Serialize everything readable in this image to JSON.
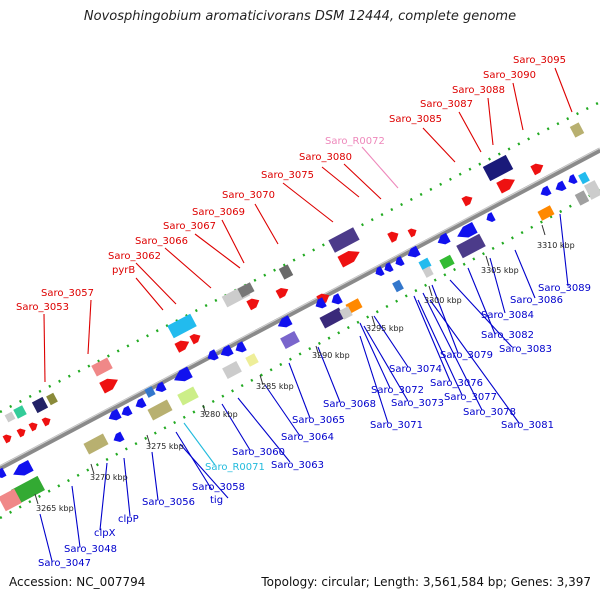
{
  "title": "Novosphingobium aromaticivorans DSM 12444, complete genome",
  "accession": "Accession: NC_007794",
  "topology": "Topology: circular; Length: 3,561,584 bp; Genes: 3,397",
  "colors": {
    "upper_labels": "#dd0000",
    "lower_labels": "#0000cc",
    "rna_upper": "#ee88bb",
    "rna_lower": "#22bbdd",
    "backbone": "#909090",
    "dotted_tracks": "#22aa22"
  },
  "upper_labels": [
    {
      "text": "Saro_3095"
    },
    {
      "text": "Saro_3090"
    },
    {
      "text": "Saro_3088"
    },
    {
      "text": "Saro_3087"
    },
    {
      "text": "Saro_3085"
    },
    {
      "text": "Saro_R0072",
      "type": "rna"
    },
    {
      "text": "Saro_3080"
    },
    {
      "text": "Saro_3075"
    },
    {
      "text": "Saro_3070"
    },
    {
      "text": "Saro_3069"
    },
    {
      "text": "Saro_3067"
    },
    {
      "text": "Saro_3066"
    },
    {
      "text": "Saro_3062"
    },
    {
      "text": "pyrB"
    },
    {
      "text": "Saro_3057"
    },
    {
      "text": "Saro_3053"
    }
  ],
  "lower_labels": [
    {
      "text": "Saro_3089"
    },
    {
      "text": "Saro_3086"
    },
    {
      "text": "Saro_3084"
    },
    {
      "text": "Saro_3082"
    },
    {
      "text": "Saro_3083"
    },
    {
      "text": "Saro_3079"
    },
    {
      "text": "Saro_3074"
    },
    {
      "text": "Saro_3076"
    },
    {
      "text": "Saro_3077"
    },
    {
      "text": "Saro_3072"
    },
    {
      "text": "Saro_3073"
    },
    {
      "text": "Saro_3078"
    },
    {
      "text": "Saro_3081"
    },
    {
      "text": "Saro_3068"
    },
    {
      "text": "Saro_3071"
    },
    {
      "text": "Saro_3065"
    },
    {
      "text": "Saro_3064"
    },
    {
      "text": "Saro_3060"
    },
    {
      "text": "Saro_3063"
    },
    {
      "text": "Saro_R0071",
      "type": "rna"
    },
    {
      "text": "Saro_3058"
    },
    {
      "text": "tig"
    },
    {
      "text": "Saro_3056"
    },
    {
      "text": "clpP"
    },
    {
      "text": "clpX"
    },
    {
      "text": "Saro_3048"
    },
    {
      "text": "Saro_3047"
    }
  ],
  "scale_labels": [
    {
      "text": "3310 kbp"
    },
    {
      "text": "3305 kbp"
    },
    {
      "text": "3300 kbp"
    },
    {
      "text": "3295 kbp"
    },
    {
      "text": "3290 kbp"
    },
    {
      "text": "3285 kbp"
    },
    {
      "text": "3280 kbp"
    },
    {
      "text": "3275 kbp"
    },
    {
      "text": "3270 kbp"
    },
    {
      "text": "3265 kbp"
    }
  ]
}
